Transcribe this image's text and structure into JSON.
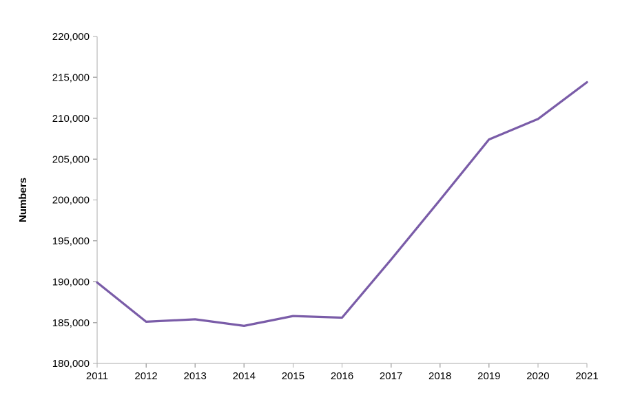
{
  "page": {
    "background": "#FFFFFF"
  },
  "chart_data": {
    "type": "line",
    "title": "",
    "xlabel": "",
    "ylabel": "Numbers",
    "categories": [
      "2011",
      "2012",
      "2013",
      "2014",
      "2015",
      "2016",
      "2017",
      "2018",
      "2019",
      "2020",
      "2021"
    ],
    "series": [
      {
        "name": "Numbers",
        "color": "#7A5CA8",
        "values": [
          189900,
          185100,
          185400,
          184600,
          185800,
          185600,
          192700,
          200000,
          207400,
          209900,
          214400
        ]
      }
    ],
    "ylim": [
      180000,
      220000
    ],
    "ytick_step": 5000,
    "ytick_values": [
      180000,
      185000,
      190000,
      195000,
      200000,
      205000,
      210000,
      215000,
      220000
    ],
    "ytick_labels": [
      "180,000",
      "185,000",
      "190,000",
      "195,000",
      "200,000",
      "205,000",
      "210,000",
      "215,000",
      "220,000"
    ],
    "grid": false,
    "legend_position": "none",
    "axis_color": "#ABABAB",
    "text_color": "#000000",
    "line_width": 3.25
  }
}
